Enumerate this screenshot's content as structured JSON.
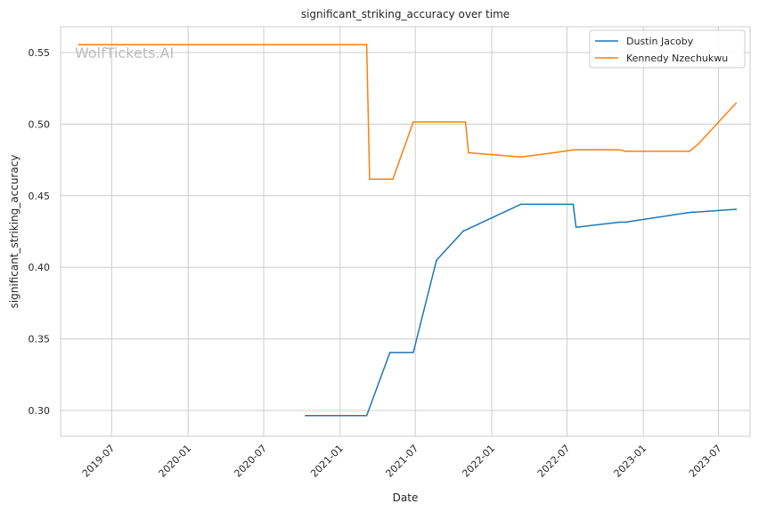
{
  "chart_data": {
    "type": "line",
    "title": "significant_striking_accuracy over time",
    "xlabel": "Date",
    "ylabel": "significant_striking_accuracy",
    "watermark": "WolfTickets.AI",
    "x_axis_type": "date",
    "xlim": [
      "2019-02-28",
      "2023-09-15"
    ],
    "ylim": [
      0.282,
      0.568
    ],
    "x_ticks": [
      "2019-07",
      "2020-01",
      "2020-07",
      "2021-01",
      "2021-07",
      "2022-01",
      "2022-07",
      "2023-01",
      "2023-07"
    ],
    "y_ticks": [
      "0.30",
      "0.35",
      "0.40",
      "0.45",
      "0.50",
      "0.55"
    ],
    "grid": true,
    "legend_position": "top-right",
    "series": [
      {
        "name": "Dustin Jacoby",
        "color": "#1f77b4",
        "points": [
          {
            "x": "2020-10-10",
            "y": 0.2965
          },
          {
            "x": "2021-03-06",
            "y": 0.2965
          },
          {
            "x": "2021-05-01",
            "y": 0.3405
          },
          {
            "x": "2021-06-26",
            "y": 0.3405
          },
          {
            "x": "2021-08-21",
            "y": 0.405
          },
          {
            "x": "2021-10-25",
            "y": 0.4255
          },
          {
            "x": "2021-10-30",
            "y": 0.426
          },
          {
            "x": "2022-03-12",
            "y": 0.444
          },
          {
            "x": "2022-07-16",
            "y": 0.444
          },
          {
            "x": "2022-07-23",
            "y": 0.428
          },
          {
            "x": "2022-11-05",
            "y": 0.4315
          },
          {
            "x": "2022-11-19",
            "y": 0.4315
          },
          {
            "x": "2023-04-15",
            "y": 0.438
          },
          {
            "x": "2023-04-29",
            "y": 0.4385
          },
          {
            "x": "2023-05-06",
            "y": 0.4385
          },
          {
            "x": "2023-08-12",
            "y": 0.4405
          }
        ]
      },
      {
        "name": "Kennedy Nzechukwu",
        "color": "#ff7f0e",
        "points": [
          {
            "x": "2019-04-13",
            "y": 0.5555
          },
          {
            "x": "2021-03-06",
            "y": 0.5555
          },
          {
            "x": "2021-03-13",
            "y": 0.4615
          },
          {
            "x": "2021-05-08",
            "y": 0.4615
          },
          {
            "x": "2021-06-26",
            "y": 0.5015
          },
          {
            "x": "2021-10-30",
            "y": 0.5015
          },
          {
            "x": "2021-11-06",
            "y": 0.48
          },
          {
            "x": "2022-03-12",
            "y": 0.477
          },
          {
            "x": "2022-06-25",
            "y": 0.481
          },
          {
            "x": "2022-07-16",
            "y": 0.482
          },
          {
            "x": "2022-11-05",
            "y": 0.482
          },
          {
            "x": "2022-11-19",
            "y": 0.481
          },
          {
            "x": "2023-04-22",
            "y": 0.481
          },
          {
            "x": "2023-05-13",
            "y": 0.486
          },
          {
            "x": "2023-08-12",
            "y": 0.5145
          }
        ]
      }
    ]
  }
}
